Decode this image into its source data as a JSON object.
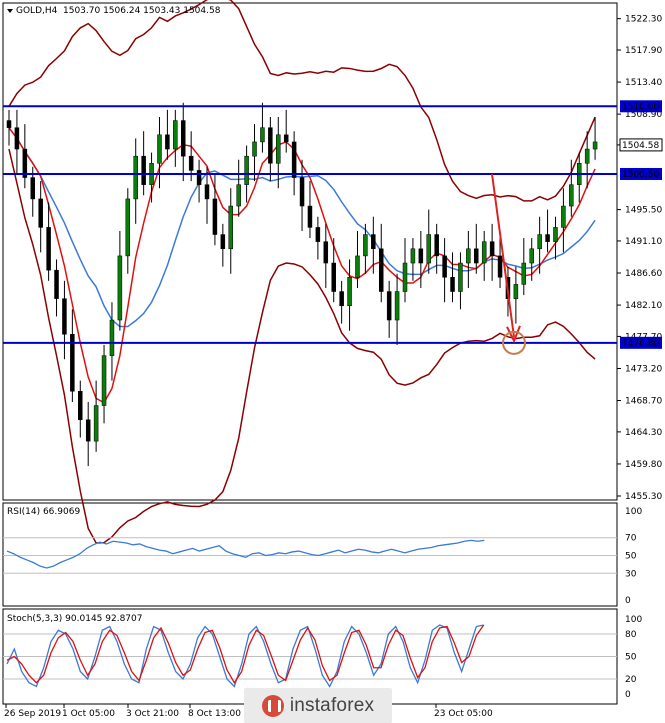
{
  "chart_data": [
    {
      "type": "candlestick",
      "header": {
        "symbol": "GOLD,H4",
        "values": "1503.70 1506.24 1503.43 1504.58"
      },
      "ylim": [
        1455.3,
        1524.5
      ],
      "y_ticks": [
        "1522.30",
        "1517.90",
        "1513.40",
        "1508.90",
        "1504.58",
        "1495.50",
        "1491.10",
        "1486.60",
        "1482.10",
        "1477.70",
        "1473.20",
        "1468.70",
        "1464.30",
        "1459.80",
        "1455.30"
      ],
      "levels": [
        {
          "label": "1510.00",
          "value": 1510.0,
          "color": "#0000cc"
        },
        {
          "label": "1500.50",
          "value": 1500.5,
          "color": "#0000cc"
        },
        {
          "label": "1476.80",
          "value": 1476.8,
          "color": "#0000cc"
        }
      ],
      "current_price": {
        "label": "1504.58",
        "value": 1504.58
      },
      "x_ticks": [
        "26 Sep 2019",
        "1 Oct 05:00",
        "3 Oct 21:00",
        "8 Oct 13:00",
        "23 Oct 05:00"
      ],
      "candles_close": [
        1507,
        1504,
        1500,
        1497,
        1493,
        1487,
        1483,
        1478,
        1470,
        1466,
        1463,
        1468,
        1475,
        1480,
        1489,
        1497,
        1503,
        1499,
        1502,
        1506,
        1504,
        1508,
        1503,
        1501,
        1499,
        1497,
        1492,
        1490,
        1496,
        1499,
        1503,
        1505,
        1507,
        1502,
        1506,
        1505,
        1500,
        1496,
        1493,
        1491,
        1488,
        1484,
        1482,
        1486,
        1489,
        1492,
        1490,
        1484,
        1480,
        1484,
        1488,
        1490,
        1488,
        1492,
        1489,
        1486,
        1484,
        1488,
        1490,
        1488,
        1491,
        1489,
        1486,
        1483,
        1485,
        1488,
        1490,
        1492,
        1491,
        1493,
        1496,
        1499,
        1502,
        1504,
        1505
      ],
      "projection": {
        "from": 1500.5,
        "to": 1476.8,
        "color": "#dd2222"
      }
    },
    {
      "type": "line",
      "header": "RSI(14) 66.9069",
      "ylim": [
        0,
        100
      ],
      "y_ticks": [
        "100",
        "70",
        "50",
        "30",
        "0"
      ],
      "values": [
        55,
        52,
        48,
        45,
        42,
        38,
        36,
        38,
        42,
        45,
        48,
        52,
        58,
        62,
        65,
        63,
        66,
        65,
        64,
        62,
        63,
        60,
        58,
        56,
        55,
        52,
        54,
        56,
        58,
        55,
        57,
        59,
        61,
        55,
        52,
        50,
        48,
        52,
        53,
        50,
        51,
        53,
        52,
        54,
        55,
        53,
        51,
        50,
        52,
        54,
        56,
        53,
        55,
        57,
        56,
        54,
        53,
        55,
        57,
        55,
        53,
        55,
        57,
        58,
        59,
        61,
        62,
        63,
        64,
        66,
        67,
        66,
        67
      ]
    },
    {
      "type": "line",
      "header": "Stoch(5,3,3) 90.0145 92.8707",
      "ylim": [
        0,
        100
      ],
      "y_ticks": [
        "100",
        "80",
        "50",
        "20",
        "0"
      ],
      "main": [
        40,
        60,
        30,
        15,
        10,
        35,
        70,
        85,
        80,
        60,
        30,
        20,
        50,
        85,
        90,
        70,
        40,
        20,
        15,
        60,
        90,
        85,
        55,
        30,
        20,
        40,
        75,
        90,
        80,
        50,
        20,
        10,
        40,
        80,
        90,
        70,
        40,
        15,
        20,
        60,
        85,
        90,
        60,
        25,
        10,
        30,
        70,
        90,
        80,
        55,
        25,
        40,
        80,
        90,
        70,
        35,
        15,
        45,
        85,
        92,
        88,
        55,
        30,
        60,
        90,
        92
      ],
      "signal": [
        45,
        50,
        40,
        25,
        15,
        25,
        55,
        75,
        82,
        70,
        45,
        25,
        40,
        70,
        85,
        78,
        55,
        30,
        18,
        45,
        75,
        88,
        68,
        42,
        25,
        32,
        60,
        82,
        85,
        62,
        32,
        15,
        30,
        65,
        85,
        78,
        52,
        25,
        18,
        45,
        72,
        88,
        72,
        38,
        18,
        25,
        55,
        82,
        85,
        65,
        35,
        35,
        65,
        85,
        78,
        48,
        22,
        35,
        70,
        88,
        90,
        68,
        42,
        50,
        78,
        92
      ]
    }
  ],
  "watermark": {
    "text": "instaforex"
  }
}
